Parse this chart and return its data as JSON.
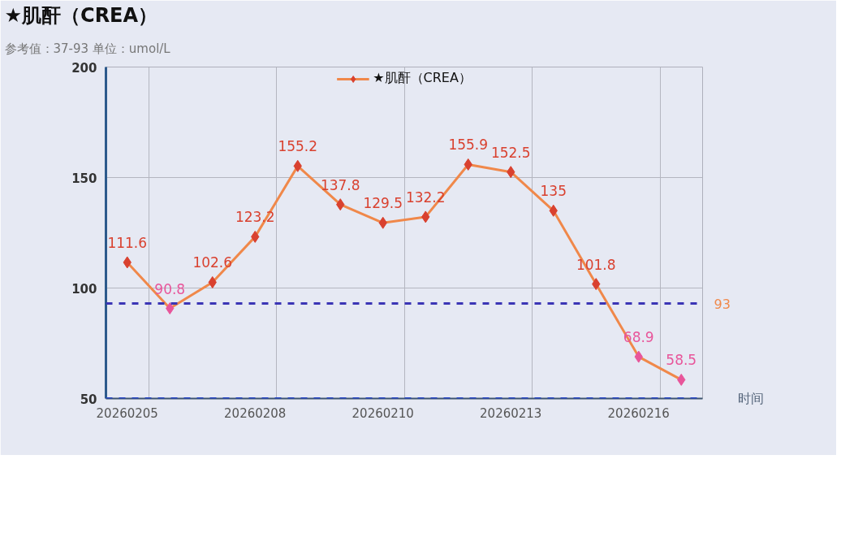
{
  "chart_data": {
    "type": "line",
    "title": "★肌酐（CREA）",
    "subtitle": "参考值：37-93 单位：umol/L",
    "xlabel": "时间",
    "categories": [
      "20260205",
      null,
      null,
      "20260208",
      null,
      null,
      "20260210",
      null,
      null,
      "20260213",
      null,
      null,
      "20260216",
      null
    ],
    "series": [
      {
        "name": "★肌酐（CREA）",
        "color": "#f0884a",
        "colors": [
          "#d9412f",
          "#e8559a",
          "#d9412f",
          "#d9412f",
          "#d9412f",
          "#d9412f",
          "#d9412f",
          "#d9412f",
          "#d9412f",
          "#d9412f",
          "#d9412f",
          "#d9412f",
          "#e8559a",
          "#e8559a"
        ],
        "values": [
          111.6,
          90.8,
          102.6,
          123.2,
          155.2,
          137.8,
          129.5,
          132.2,
          155.9,
          152.5,
          135,
          101.8,
          68.9,
          58.5
        ]
      }
    ],
    "ylim": [
      50,
      200
    ],
    "yticks": [
      50,
      100,
      150,
      200
    ],
    "ref_lines": [
      {
        "axis": "y",
        "value": 93,
        "label": "93",
        "color": "#3b35b5",
        "line_style": "dashed"
      },
      {
        "axis": "y",
        "value": 50,
        "color": "#2846c4",
        "line_style": "dashed"
      }
    ],
    "marker": "diamond",
    "grid": true,
    "legend": "top",
    "data_labels": true
  }
}
